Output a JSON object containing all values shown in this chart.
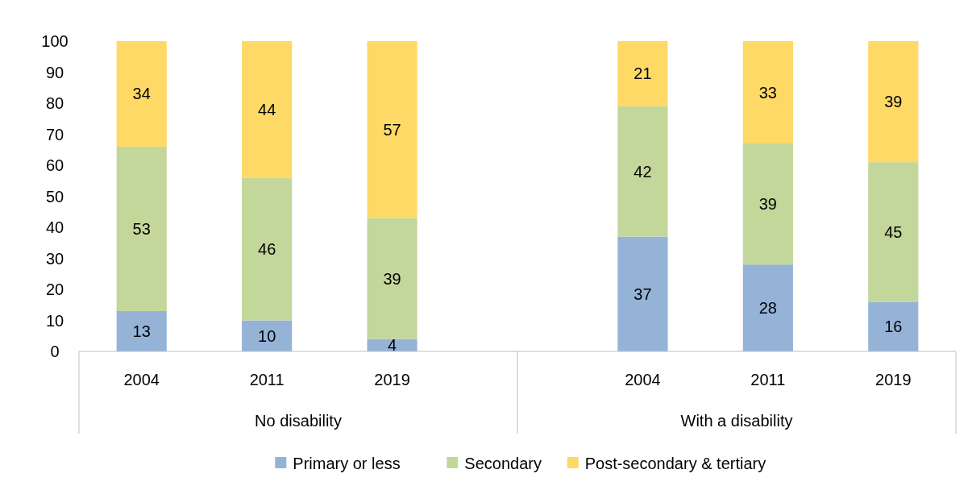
{
  "chart_data": {
    "type": "bar",
    "stacked": true,
    "categories": [
      "2004",
      "2011",
      "2019",
      null,
      "2004",
      "2011",
      "2019"
    ],
    "series": [
      {
        "name": "Primary or less",
        "color": "#95b3d7",
        "values": [
          13,
          10,
          4,
          null,
          37,
          28,
          16
        ]
      },
      {
        "name": "Secondary",
        "color": "#c4d79b",
        "values": [
          53,
          46,
          39,
          null,
          42,
          39,
          45
        ]
      },
      {
        "name": "Post-secondary & tertiary",
        "color": "#ffd966",
        "values": [
          34,
          44,
          57,
          null,
          21,
          33,
          39
        ]
      }
    ],
    "annotations": [
      "No disability",
      "With a disability"
    ],
    "ylim": [
      0,
      100
    ],
    "yticks": [
      0,
      10,
      20,
      30,
      40,
      50,
      60,
      70,
      80,
      90,
      100
    ],
    "data_labels": true,
    "grid": false,
    "legend": "bottom"
  }
}
